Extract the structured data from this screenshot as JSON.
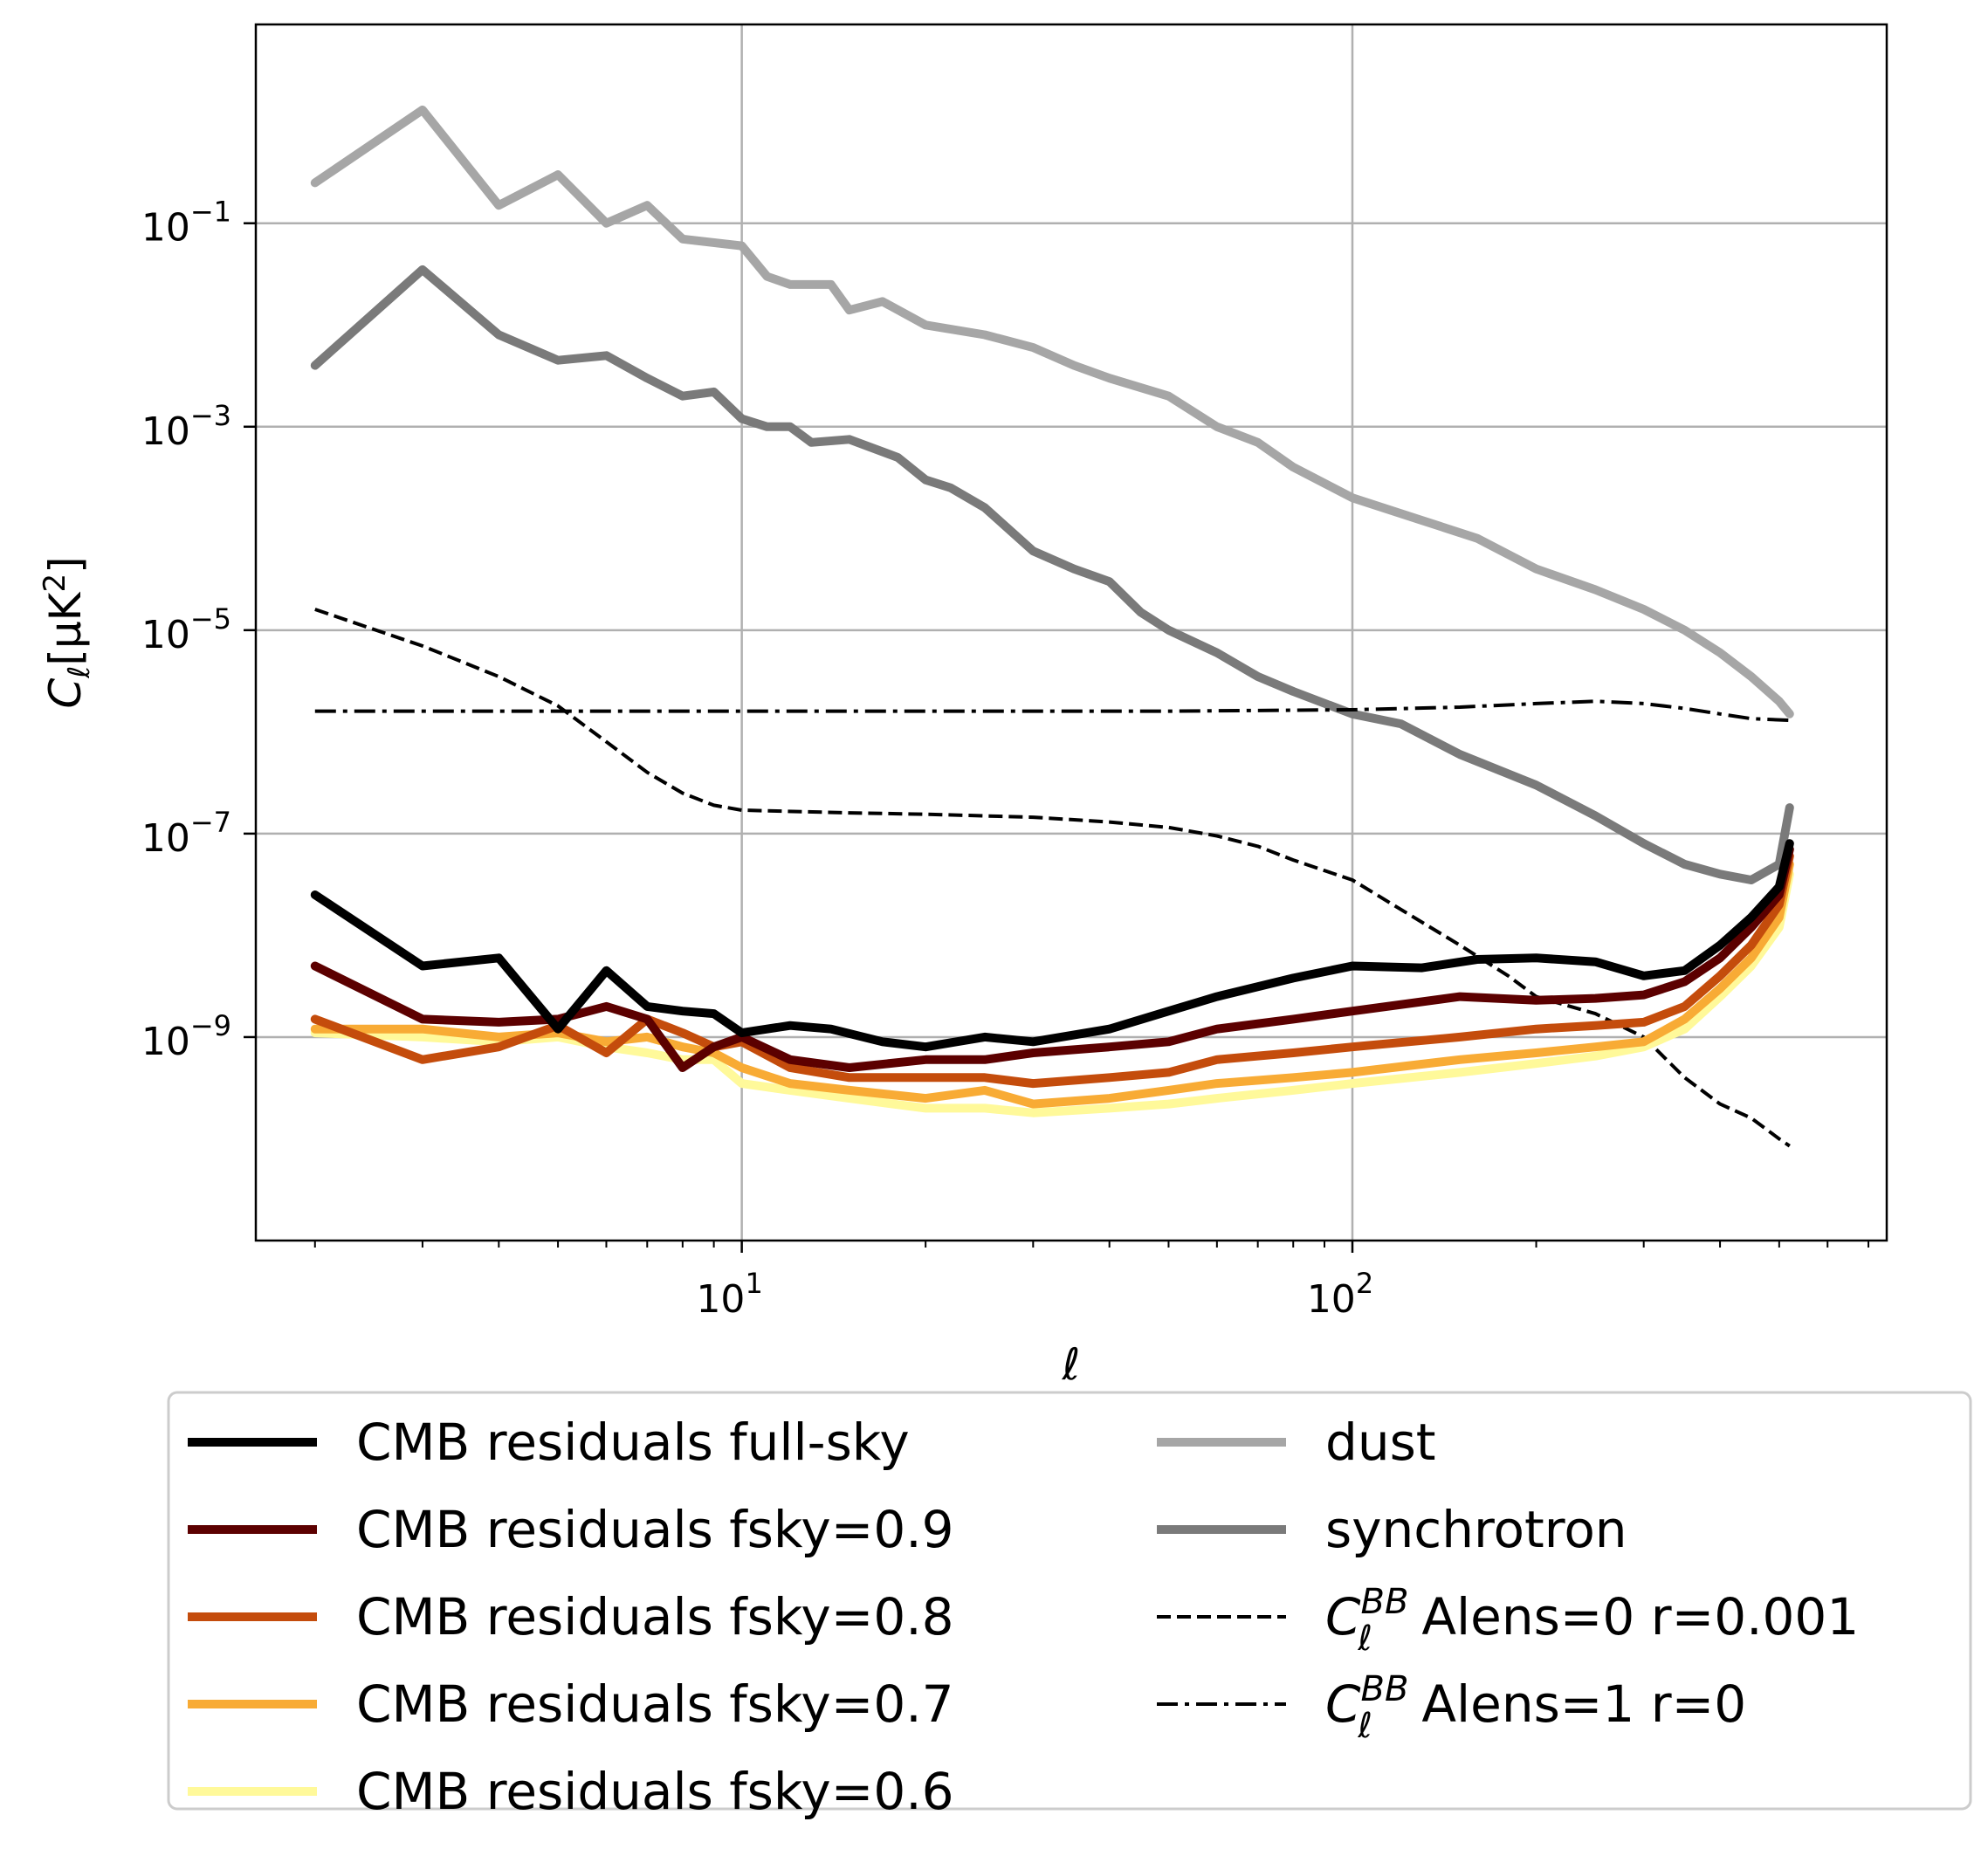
{
  "chart_data": {
    "type": "line",
    "title": "",
    "xlabel": "ℓ",
    "ylabel": "C_ℓ [μK²]",
    "ylabel_parts": {
      "sym": "C",
      "sub": "ℓ",
      "unit_open": "[μK",
      "unit_sup": "2",
      "unit_close": "]"
    },
    "xscale": "log",
    "yscale": "log",
    "xlim": [
      1.6,
      750
    ],
    "ylim": [
      1e-11,
      9.0
    ],
    "grid": true,
    "legend_position": "below-plot, two columns",
    "xticks": [
      {
        "value": 10,
        "base": "10",
        "exp": "1"
      },
      {
        "value": 100,
        "base": "10",
        "exp": "2"
      }
    ],
    "yticks": [
      {
        "value": 0.1,
        "base": "10",
        "exp": "−1"
      },
      {
        "value": 0.001,
        "base": "10",
        "exp": "−3"
      },
      {
        "value": 1e-05,
        "base": "10",
        "exp": "−5"
      },
      {
        "value": 1e-07,
        "base": "10",
        "exp": "−7"
      },
      {
        "value": 1e-09,
        "base": "10",
        "exp": "−9"
      }
    ],
    "series": [
      {
        "name": "CMB residuals full-sky",
        "color": "#000000",
        "style": "solid",
        "points": [
          [
            2,
            2.5e-08
          ],
          [
            3,
            5e-09
          ],
          [
            4,
            6e-09
          ],
          [
            5,
            1.2e-09
          ],
          [
            6,
            4.5e-09
          ],
          [
            7,
            2e-09
          ],
          [
            8,
            1.8e-09
          ],
          [
            9,
            1.7e-09
          ],
          [
            10,
            1.1e-09
          ],
          [
            12,
            1.3e-09
          ],
          [
            14,
            1.2e-09
          ],
          [
            17,
            9e-10
          ],
          [
            20,
            8e-10
          ],
          [
            25,
            1e-09
          ],
          [
            30,
            9e-10
          ],
          [
            40,
            1.2e-09
          ],
          [
            50,
            1.8e-09
          ],
          [
            60,
            2.5e-09
          ],
          [
            80,
            3.8e-09
          ],
          [
            100,
            5e-09
          ],
          [
            130,
            4.8e-09
          ],
          [
            160,
            5.8e-09
          ],
          [
            200,
            6e-09
          ],
          [
            250,
            5.5e-09
          ],
          [
            300,
            4e-09
          ],
          [
            350,
            4.5e-09
          ],
          [
            400,
            8e-09
          ],
          [
            450,
            1.5e-08
          ],
          [
            500,
            3e-08
          ],
          [
            520,
            8e-08
          ]
        ]
      },
      {
        "name": "CMB residuals fsky=0.9",
        "color": "#5c0000",
        "style": "solid",
        "points": [
          [
            2,
            5e-09
          ],
          [
            3,
            1.5e-09
          ],
          [
            4,
            1.4e-09
          ],
          [
            5,
            1.5e-09
          ],
          [
            6,
            2e-09
          ],
          [
            7,
            1.5e-09
          ],
          [
            8,
            5e-10
          ],
          [
            9,
            8e-10
          ],
          [
            10,
            1e-09
          ],
          [
            12,
            6e-10
          ],
          [
            15,
            5e-10
          ],
          [
            20,
            6e-10
          ],
          [
            25,
            6e-10
          ],
          [
            30,
            7e-10
          ],
          [
            40,
            8e-10
          ],
          [
            50,
            9e-10
          ],
          [
            60,
            1.2e-09
          ],
          [
            80,
            1.5e-09
          ],
          [
            100,
            1.8e-09
          ],
          [
            150,
            2.5e-09
          ],
          [
            200,
            2.3e-09
          ],
          [
            250,
            2.4e-09
          ],
          [
            300,
            2.6e-09
          ],
          [
            350,
            3.5e-09
          ],
          [
            400,
            6e-09
          ],
          [
            450,
            1.2e-08
          ],
          [
            500,
            2.5e-08
          ],
          [
            520,
            7e-08
          ]
        ]
      },
      {
        "name": "CMB residuals fsky=0.8",
        "color": "#c44c0c",
        "style": "solid",
        "points": [
          [
            2,
            1.5e-09
          ],
          [
            3,
            6e-10
          ],
          [
            4,
            8e-10
          ],
          [
            5,
            1.3e-09
          ],
          [
            6,
            7e-10
          ],
          [
            7,
            1.5e-09
          ],
          [
            8,
            1.1e-09
          ],
          [
            9,
            8e-10
          ],
          [
            10,
            9e-10
          ],
          [
            12,
            5e-10
          ],
          [
            15,
            4e-10
          ],
          [
            20,
            4e-10
          ],
          [
            25,
            4e-10
          ],
          [
            30,
            3.5e-10
          ],
          [
            40,
            4e-10
          ],
          [
            50,
            4.5e-10
          ],
          [
            60,
            6e-10
          ],
          [
            80,
            7e-10
          ],
          [
            100,
            8e-10
          ],
          [
            150,
            1e-09
          ],
          [
            200,
            1.2e-09
          ],
          [
            250,
            1.3e-09
          ],
          [
            300,
            1.4e-09
          ],
          [
            350,
            2e-09
          ],
          [
            400,
            4e-09
          ],
          [
            450,
            8e-09
          ],
          [
            500,
            2e-08
          ],
          [
            520,
            6e-08
          ]
        ]
      },
      {
        "name": "CMB residuals fsky=0.7",
        "color": "#f8ab35",
        "style": "solid",
        "points": [
          [
            2,
            1.2e-09
          ],
          [
            3,
            1.2e-09
          ],
          [
            4,
            1e-09
          ],
          [
            5,
            1.1e-09
          ],
          [
            6,
            9e-10
          ],
          [
            7,
            1e-09
          ],
          [
            8,
            8e-10
          ],
          [
            9,
            7e-10
          ],
          [
            10,
            5e-10
          ],
          [
            12,
            3.5e-10
          ],
          [
            15,
            3e-10
          ],
          [
            20,
            2.5e-10
          ],
          [
            25,
            3e-10
          ],
          [
            30,
            2.2e-10
          ],
          [
            40,
            2.5e-10
          ],
          [
            50,
            3e-10
          ],
          [
            60,
            3.5e-10
          ],
          [
            80,
            4e-10
          ],
          [
            100,
            4.5e-10
          ],
          [
            150,
            6e-10
          ],
          [
            200,
            7e-10
          ],
          [
            250,
            8e-10
          ],
          [
            300,
            9e-10
          ],
          [
            350,
            1.5e-09
          ],
          [
            400,
            3e-09
          ],
          [
            450,
            6e-09
          ],
          [
            500,
            1.5e-08
          ],
          [
            520,
            5e-08
          ]
        ]
      },
      {
        "name": "CMB residuals fsky=0.6",
        "color": "#fff99a",
        "style": "solid",
        "points": [
          [
            2,
            1.1e-09
          ],
          [
            3,
            1e-09
          ],
          [
            4,
            9e-10
          ],
          [
            5,
            1e-09
          ],
          [
            6,
            8e-10
          ],
          [
            7,
            7e-10
          ],
          [
            8,
            6e-10
          ],
          [
            9,
            6e-10
          ],
          [
            10,
            3.5e-10
          ],
          [
            12,
            3e-10
          ],
          [
            15,
            2.5e-10
          ],
          [
            20,
            2e-10
          ],
          [
            25,
            2e-10
          ],
          [
            30,
            1.8e-10
          ],
          [
            40,
            2e-10
          ],
          [
            50,
            2.2e-10
          ],
          [
            60,
            2.5e-10
          ],
          [
            80,
            3e-10
          ],
          [
            100,
            3.5e-10
          ],
          [
            150,
            4.5e-10
          ],
          [
            200,
            5.5e-10
          ],
          [
            250,
            6.5e-10
          ],
          [
            300,
            8e-10
          ],
          [
            350,
            1.2e-09
          ],
          [
            400,
            2.5e-09
          ],
          [
            450,
            5e-09
          ],
          [
            500,
            1.2e-08
          ],
          [
            520,
            4e-08
          ]
        ]
      },
      {
        "name": "dust",
        "color": "#a6a6a6",
        "style": "solid",
        "points": [
          [
            2,
            0.25
          ],
          [
            3,
            1.3
          ],
          [
            4,
            0.15
          ],
          [
            5,
            0.3
          ],
          [
            6,
            0.1
          ],
          [
            7,
            0.15
          ],
          [
            8,
            0.07
          ],
          [
            10,
            0.06
          ],
          [
            11,
            0.03
          ],
          [
            12,
            0.025
          ],
          [
            14,
            0.025
          ],
          [
            15,
            0.014
          ],
          [
            17,
            0.017
          ],
          [
            20,
            0.01
          ],
          [
            25,
            0.008
          ],
          [
            30,
            0.006
          ],
          [
            35,
            0.004
          ],
          [
            40,
            0.003
          ],
          [
            50,
            0.002
          ],
          [
            60,
            0.001
          ],
          [
            70,
            0.0007
          ],
          [
            80,
            0.0004
          ],
          [
            100,
            0.0002
          ],
          [
            130,
            0.00012
          ],
          [
            160,
            8e-05
          ],
          [
            200,
            4e-05
          ],
          [
            250,
            2.5e-05
          ],
          [
            300,
            1.6e-05
          ],
          [
            350,
            1e-05
          ],
          [
            400,
            6e-06
          ],
          [
            450,
            3.5e-06
          ],
          [
            500,
            2e-06
          ],
          [
            520,
            1.5e-06
          ]
        ]
      },
      {
        "name": "synchrotron",
        "color": "#7a7a7a",
        "style": "solid",
        "points": [
          [
            2,
            0.004
          ],
          [
            3,
            0.035
          ],
          [
            4,
            0.008
          ],
          [
            5,
            0.0045
          ],
          [
            6,
            0.005
          ],
          [
            7,
            0.003
          ],
          [
            8,
            0.002
          ],
          [
            9,
            0.0022
          ],
          [
            10,
            0.0012
          ],
          [
            11,
            0.001
          ],
          [
            12,
            0.001
          ],
          [
            13,
            0.0007
          ],
          [
            15,
            0.00075
          ],
          [
            18,
            0.0005
          ],
          [
            20,
            0.0003
          ],
          [
            22,
            0.00025
          ],
          [
            25,
            0.00016
          ],
          [
            30,
            6e-05
          ],
          [
            35,
            4e-05
          ],
          [
            40,
            3e-05
          ],
          [
            45,
            1.5e-05
          ],
          [
            50,
            1e-05
          ],
          [
            60,
            6e-06
          ],
          [
            70,
            3.5e-06
          ],
          [
            80,
            2.5e-06
          ],
          [
            100,
            1.5e-06
          ],
          [
            120,
            1.2e-06
          ],
          [
            150,
            6e-07
          ],
          [
            200,
            3e-07
          ],
          [
            250,
            1.5e-07
          ],
          [
            300,
            8e-08
          ],
          [
            350,
            5e-08
          ],
          [
            400,
            4e-08
          ],
          [
            450,
            3.5e-08
          ],
          [
            500,
            5e-08
          ],
          [
            520,
            1.8e-07
          ]
        ]
      },
      {
        "name_parts": {
          "sym": "C",
          "sub": "ℓ",
          "sup": "BB",
          "rest": " Alens=0 r=0.001"
        },
        "color": "#000000",
        "style": "dashed",
        "points": [
          [
            2,
            1.6e-05
          ],
          [
            3,
            7e-06
          ],
          [
            4,
            3.5e-06
          ],
          [
            5,
            1.8e-06
          ],
          [
            6,
            8e-07
          ],
          [
            7,
            4e-07
          ],
          [
            8,
            2.5e-07
          ],
          [
            9,
            1.9e-07
          ],
          [
            10,
            1.7e-07
          ],
          [
            15,
            1.6e-07
          ],
          [
            20,
            1.55e-07
          ],
          [
            30,
            1.45e-07
          ],
          [
            40,
            1.3e-07
          ],
          [
            50,
            1.15e-07
          ],
          [
            60,
            9.5e-08
          ],
          [
            70,
            7.5e-08
          ],
          [
            80,
            5.5e-08
          ],
          [
            100,
            3.5e-08
          ],
          [
            120,
            1.8e-08
          ],
          [
            150,
            8e-09
          ],
          [
            180,
            4e-09
          ],
          [
            200,
            2.5e-09
          ],
          [
            250,
            1.7e-09
          ],
          [
            300,
            1e-09
          ],
          [
            350,
            4e-10
          ],
          [
            400,
            2.2e-10
          ],
          [
            450,
            1.6e-10
          ],
          [
            500,
            1e-10
          ],
          [
            520,
            8.5e-11
          ]
        ]
      },
      {
        "name_parts": {
          "sym": "C",
          "sub": "ℓ",
          "sup": "BB",
          "rest": " Alens=1 r=0"
        },
        "color": "#000000",
        "style": "dashdot",
        "points": [
          [
            2,
            1.6e-06
          ],
          [
            10,
            1.6e-06
          ],
          [
            50,
            1.6e-06
          ],
          [
            100,
            1.65e-06
          ],
          [
            150,
            1.75e-06
          ],
          [
            200,
            1.9e-06
          ],
          [
            250,
            2e-06
          ],
          [
            300,
            1.9e-06
          ],
          [
            350,
            1.7e-06
          ],
          [
            400,
            1.5e-06
          ],
          [
            450,
            1.35e-06
          ],
          [
            520,
            1.3e-06
          ]
        ]
      }
    ]
  }
}
